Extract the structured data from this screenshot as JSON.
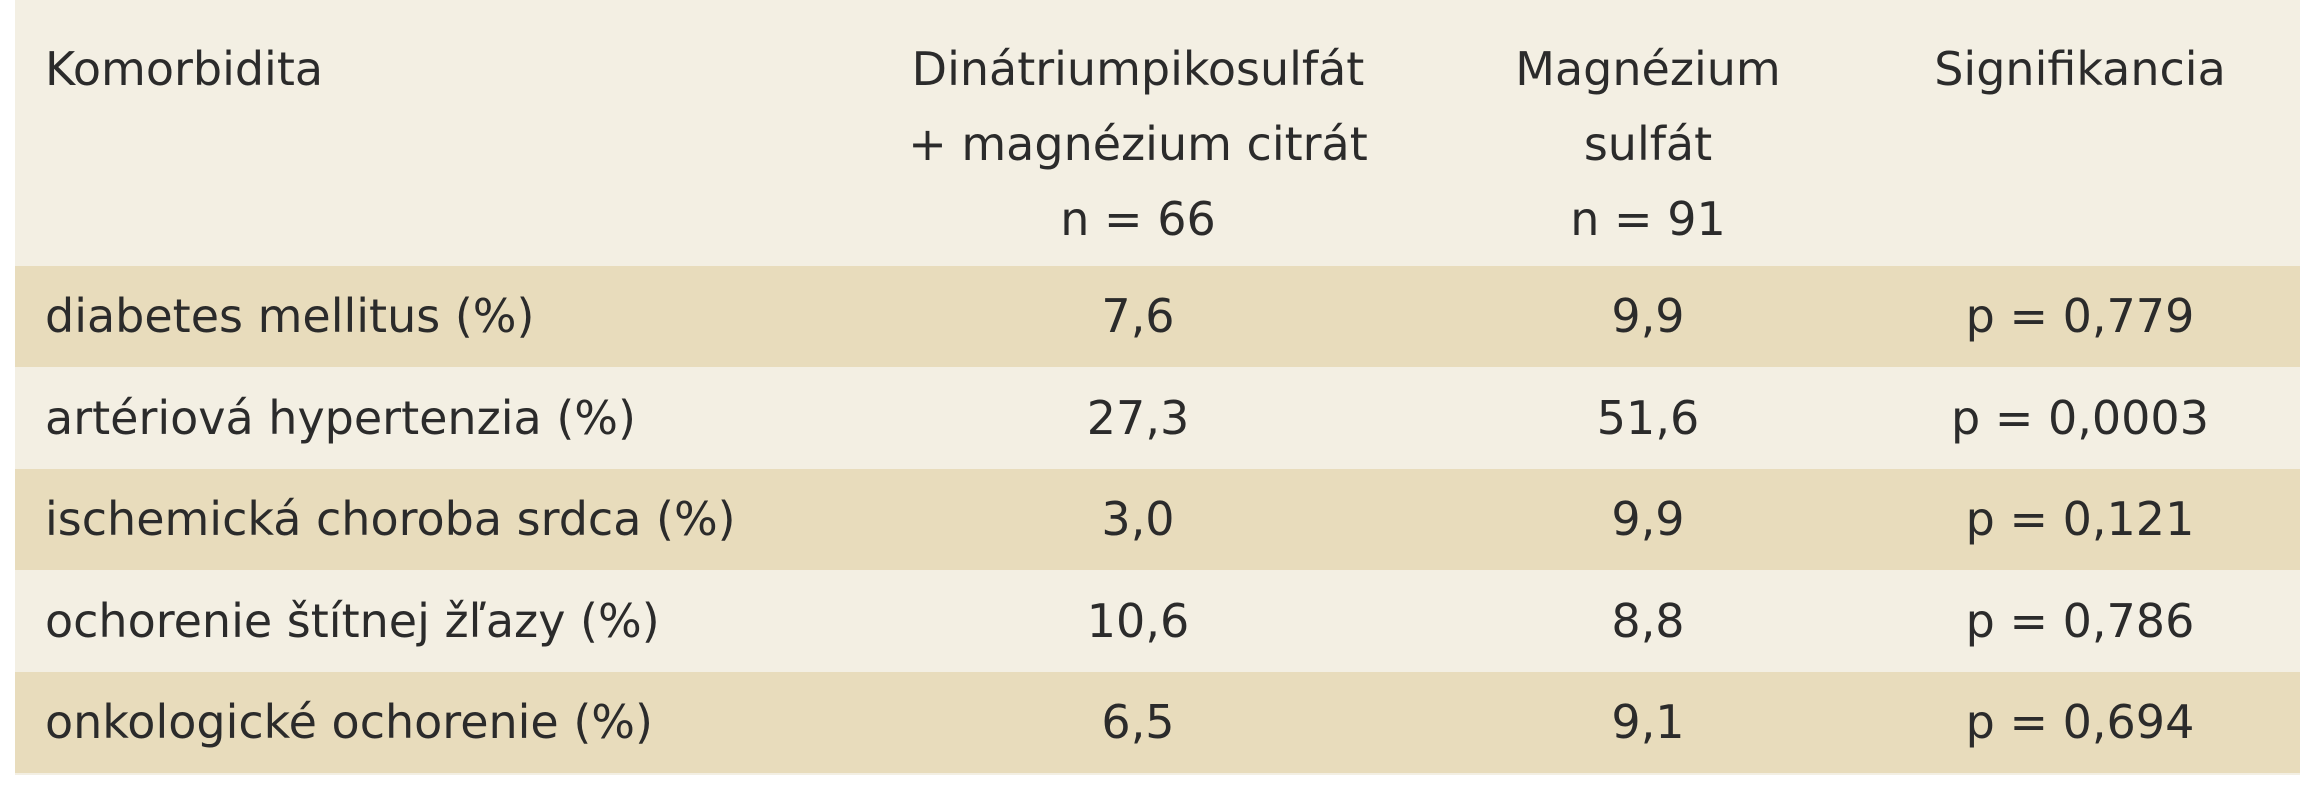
{
  "table": {
    "header": [
      [
        "Komorbidita"
      ],
      [
        "Dinátriumpikosulfát",
        "+ magnézium citrát",
        "n = 66"
      ],
      [
        "Magnézium",
        "sulfát",
        "n = 91"
      ],
      [
        "Signifikancia"
      ]
    ],
    "rows": [
      [
        "diabetes mellitus (%)",
        "7,6",
        "9,9",
        "p = 0,779"
      ],
      [
        "artériová hypertenzia (%)",
        "27,3",
        "51,6",
        "p = 0,0003"
      ],
      [
        "ischemická choroba srdca (%)",
        "3,0",
        "9,9",
        "p = 0,121"
      ],
      [
        "ochorenie štítnej žľazy (%)",
        "10,6",
        "8,8",
        "p = 0,786"
      ],
      [
        "onkologické ochorenie (%)",
        "6,5",
        "9,1",
        "p = 0,694"
      ]
    ]
  }
}
